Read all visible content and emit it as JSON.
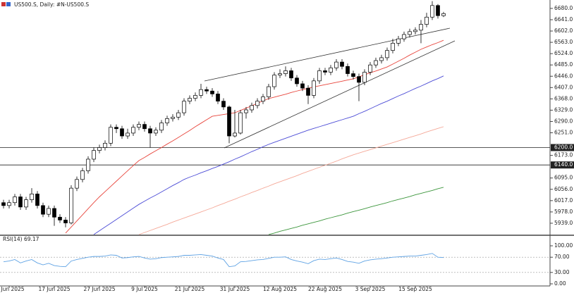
{
  "chart_data": [
    {
      "type": "candlestick",
      "title": "US500.S, Daily: #N-US500.S",
      "categories": [
        null,
        "Jun 2025",
        null,
        null,
        null,
        null,
        null,
        null,
        null,
        "17 Jun 2025",
        null,
        null,
        null,
        null,
        null,
        null,
        null,
        "27 Jun 2025",
        null,
        null,
        null,
        null,
        null,
        null,
        null,
        "9 Jul 2025",
        null,
        null,
        null,
        null,
        null,
        null,
        null,
        "21 Jul 2025",
        null,
        null,
        null,
        null,
        null,
        null,
        null,
        "31 Jul 2025",
        null,
        null,
        null,
        null,
        null,
        null,
        null,
        "12 Aug 2025",
        null,
        null,
        null,
        null,
        null,
        null,
        null,
        "22 Aug 2025",
        null,
        null,
        null,
        null,
        null,
        null,
        null,
        "3 Sep 2025",
        null,
        null,
        null,
        null,
        null,
        null,
        null,
        "15 Sep 2025",
        null,
        null,
        null,
        null,
        null
      ],
      "open": [
        6010,
        6000,
        6010,
        6030,
        5995,
        6020,
        6040,
        6000,
        5970,
        5990,
        5960,
        5950,
        5940,
        6060,
        6090,
        6120,
        6160,
        6190,
        6200,
        6215,
        6270,
        6265,
        6240,
        6250,
        6270,
        6280,
        6265,
        6250,
        6260,
        6285,
        6300,
        6305,
        6320,
        6360,
        6370,
        6380,
        6400,
        6395,
        6385,
        6360,
        6340,
        6240,
        6250,
        6320,
        6330,
        6345,
        6360,
        6375,
        6410,
        6450,
        6455,
        6465,
        6440,
        6420,
        6405,
        6380,
        6430,
        6465,
        6460,
        6475,
        6495,
        6480,
        6455,
        6445,
        6425,
        6460,
        6485,
        6500,
        6510,
        6535,
        6560,
        6575,
        6590,
        6600,
        6605,
        6625,
        6650,
        6690,
        6655
      ],
      "high": [
        6020,
        6020,
        6040,
        6040,
        6030,
        6060,
        6050,
        6010,
        6000,
        6000,
        5970,
        5960,
        6070,
        6100,
        6130,
        6170,
        6200,
        6210,
        6225,
        6280,
        6280,
        6275,
        6265,
        6280,
        6290,
        6290,
        6275,
        6270,
        6295,
        6310,
        6315,
        6330,
        6370,
        6380,
        6390,
        6420,
        6410,
        6405,
        6395,
        6370,
        6345,
        6330,
        6330,
        6340,
        6355,
        6370,
        6385,
        6420,
        6460,
        6470,
        6480,
        6475,
        6450,
        6430,
        6415,
        6440,
        6475,
        6475,
        6485,
        6505,
        6505,
        6490,
        6465,
        6455,
        6470,
        6495,
        6510,
        6520,
        6545,
        6575,
        6585,
        6600,
        6610,
        6615,
        6640,
        6665,
        6705,
        6695,
        6668
      ],
      "low": [
        5990,
        5990,
        6000,
        5985,
        5985,
        6010,
        5990,
        5960,
        5960,
        5930,
        5940,
        5925,
        5935,
        6050,
        6080,
        6110,
        6150,
        6180,
        6190,
        6205,
        6250,
        6230,
        6230,
        6240,
        6260,
        6255,
        6200,
        6240,
        6250,
        6275,
        6290,
        6295,
        6310,
        6350,
        6360,
        6370,
        6385,
        6375,
        6350,
        6330,
        6215,
        6235,
        6245,
        6300,
        6320,
        6335,
        6350,
        6365,
        6400,
        6440,
        6445,
        6430,
        6410,
        6395,
        6350,
        6370,
        6420,
        6450,
        6450,
        6465,
        6470,
        6445,
        6435,
        6360,
        6415,
        6450,
        6475,
        6490,
        6500,
        6525,
        6550,
        6565,
        6580,
        6590,
        6560,
        6615,
        6640,
        6645,
        6650
      ],
      "close": [
        6000,
        6010,
        6030,
        5995,
        6020,
        6040,
        6000,
        5970,
        5990,
        5960,
        5950,
        5940,
        6060,
        6090,
        6120,
        6160,
        6190,
        6200,
        6215,
        6270,
        6265,
        6240,
        6250,
        6270,
        6280,
        6265,
        6250,
        6260,
        6285,
        6300,
        6305,
        6320,
        6360,
        6370,
        6380,
        6400,
        6395,
        6385,
        6360,
        6340,
        6240,
        6250,
        6320,
        6330,
        6345,
        6360,
        6375,
        6410,
        6450,
        6455,
        6465,
        6440,
        6420,
        6405,
        6380,
        6430,
        6465,
        6460,
        6475,
        6495,
        6480,
        6455,
        6445,
        6425,
        6460,
        6485,
        6500,
        6510,
        6535,
        6560,
        6575,
        6590,
        6600,
        6605,
        6625,
        6650,
        6690,
        6655,
        6662
      ],
      "series": [
        {
          "color": "#e8453c",
          "values": [
            null,
            null,
            null,
            null,
            null,
            null,
            null,
            null,
            null,
            null,
            null,
            5905,
            5926,
            5947,
            5968,
            5989,
            6010,
            6030,
            6048,
            6066,
            6084,
            6102,
            6120,
            6138,
            6155,
            6166,
            6178,
            6189,
            6200,
            6212,
            6223,
            6235,
            6247,
            6259,
            6272,
            6284,
            6296,
            6308,
            6311,
            6314,
            6317,
            6320,
            6328,
            6336,
            6344,
            6353,
            6361,
            6369,
            6374,
            6379,
            6384,
            6390,
            6395,
            6400,
            6405,
            6409,
            6413,
            6417,
            6421,
            6425,
            6429,
            6433,
            6437,
            6444,
            6451,
            6458,
            6464,
            6471,
            6478,
            6488,
            6498,
            6508,
            6519,
            6529,
            6539,
            6547,
            6555,
            6562,
            6570
          ]
        },
        {
          "color": "#4b4bd6",
          "values": [
            null,
            null,
            null,
            null,
            null,
            null,
            null,
            null,
            null,
            null,
            null,
            null,
            null,
            null,
            null,
            null,
            5900,
            5913,
            5926,
            5939,
            5952,
            5965,
            5978,
            5991,
            6004,
            6015,
            6026,
            6036,
            6047,
            6058,
            6069,
            6079,
            6090,
            6098,
            6105,
            6113,
            6120,
            6128,
            6135,
            6143,
            6151,
            6160,
            6168,
            6177,
            6186,
            6194,
            6203,
            6211,
            6218,
            6225,
            6232,
            6239,
            6246,
            6253,
            6260,
            6266,
            6272,
            6278,
            6284,
            6290,
            6296,
            6302,
            6308,
            6317,
            6325,
            6334,
            6343,
            6352,
            6360,
            6369,
            6378,
            6386,
            6395,
            6404,
            6412,
            6421,
            6430,
            6438,
            6447
          ]
        },
        {
          "color": "#f5a898",
          "values": [
            null,
            null,
            null,
            null,
            null,
            null,
            null,
            null,
            null,
            null,
            null,
            null,
            null,
            null,
            null,
            null,
            null,
            null,
            null,
            null,
            null,
            null,
            null,
            null,
            5900,
            5907,
            5914,
            5921,
            5928,
            5935,
            5943,
            5950,
            5957,
            5964,
            5971,
            5978,
            5985,
            5992,
            6000,
            6007,
            6015,
            6022,
            6030,
            6037,
            6045,
            6052,
            6060,
            6067,
            6075,
            6082,
            6089,
            6096,
            6103,
            6111,
            6118,
            6125,
            6132,
            6139,
            6146,
            6153,
            6161,
            6168,
            6175,
            6181,
            6187,
            6193,
            6199,
            6205,
            6211,
            6217,
            6223,
            6229,
            6235,
            6241,
            6247,
            6254,
            6260,
            6266,
            6272
          ]
        },
        {
          "color": "#3c963c",
          "values": [
            null,
            null,
            null,
            null,
            null,
            null,
            null,
            null,
            null,
            null,
            null,
            null,
            null,
            null,
            null,
            null,
            null,
            null,
            null,
            null,
            null,
            null,
            null,
            null,
            null,
            null,
            null,
            null,
            null,
            null,
            null,
            null,
            null,
            null,
            null,
            null,
            null,
            null,
            null,
            null,
            null,
            null,
            null,
            null,
            null,
            null,
            null,
            5900,
            5905,
            5911,
            5916,
            5921,
            5926,
            5932,
            5937,
            5942,
            5947,
            5953,
            5958,
            5963,
            5968,
            5974,
            5979,
            5984,
            5989,
            5995,
            6000,
            6005,
            6010,
            6016,
            6021,
            6026,
            6031,
            6037,
            6042,
            6047,
            6052,
            6058,
            6063
          ]
        }
      ],
      "ylim": [
        5900,
        6709
      ],
      "yticks": [
        {
          "value": 6680,
          "label": "6680.0"
        },
        {
          "value": 6641,
          "label": "6641.0"
        },
        {
          "value": 6602,
          "label": "6602.0"
        },
        {
          "value": 6563,
          "label": "6563.0"
        },
        {
          "value": 6524,
          "label": "6524.0"
        },
        {
          "value": 6485,
          "label": "6485.0"
        },
        {
          "value": 6446,
          "label": "6446.0"
        },
        {
          "value": 6407,
          "label": "6407.0"
        },
        {
          "value": 6368,
          "label": "6368.0"
        },
        {
          "value": 6329,
          "label": "6329.0"
        },
        {
          "value": 6290,
          "label": "6290.0"
        },
        {
          "value": 6251,
          "label": "6251.0"
        },
        {
          "value": 6173,
          "label": "6173.0"
        },
        {
          "value": 6095,
          "label": "6095.0"
        },
        {
          "value": 6056,
          "label": "6056.0"
        },
        {
          "value": 6017,
          "label": "6017.0"
        },
        {
          "value": 5978,
          "label": "5978.0"
        },
        {
          "value": 5939,
          "label": "5939.0"
        }
      ],
      "hlines": [
        {
          "value": 6200,
          "label": "6200.0"
        },
        {
          "value": 6140,
          "label": "6140.0"
        }
      ]
    },
    {
      "type": "line",
      "title": "RSI(14) 69.17",
      "color": "#5ea2e4",
      "values": [
        58,
        60,
        64,
        55,
        60,
        64,
        55,
        50,
        54,
        48,
        46,
        45,
        60,
        64,
        67,
        70,
        72,
        72,
        73,
        76,
        75,
        68,
        69,
        71,
        72,
        68,
        65,
        66,
        69,
        70,
        71,
        72,
        75,
        75,
        76,
        77,
        75,
        73,
        68,
        64,
        45,
        47,
        58,
        59,
        61,
        63,
        64,
        67,
        70,
        70,
        71,
        64,
        60,
        57,
        53,
        61,
        65,
        64,
        66,
        68,
        64,
        59,
        57,
        54,
        60,
        63,
        65,
        66,
        68,
        70,
        71,
        72,
        73,
        73,
        75,
        77,
        80,
        70,
        69.17
      ],
      "ylim": [
        0,
        100
      ],
      "yticks": [
        {
          "value": 100,
          "label": "100.00"
        },
        {
          "value": 70,
          "label": "70.00"
        },
        {
          "value": 30,
          "label": "30.00"
        },
        {
          "value": 0,
          "label": "0.00"
        }
      ],
      "levels": [
        70,
        30
      ]
    }
  ]
}
